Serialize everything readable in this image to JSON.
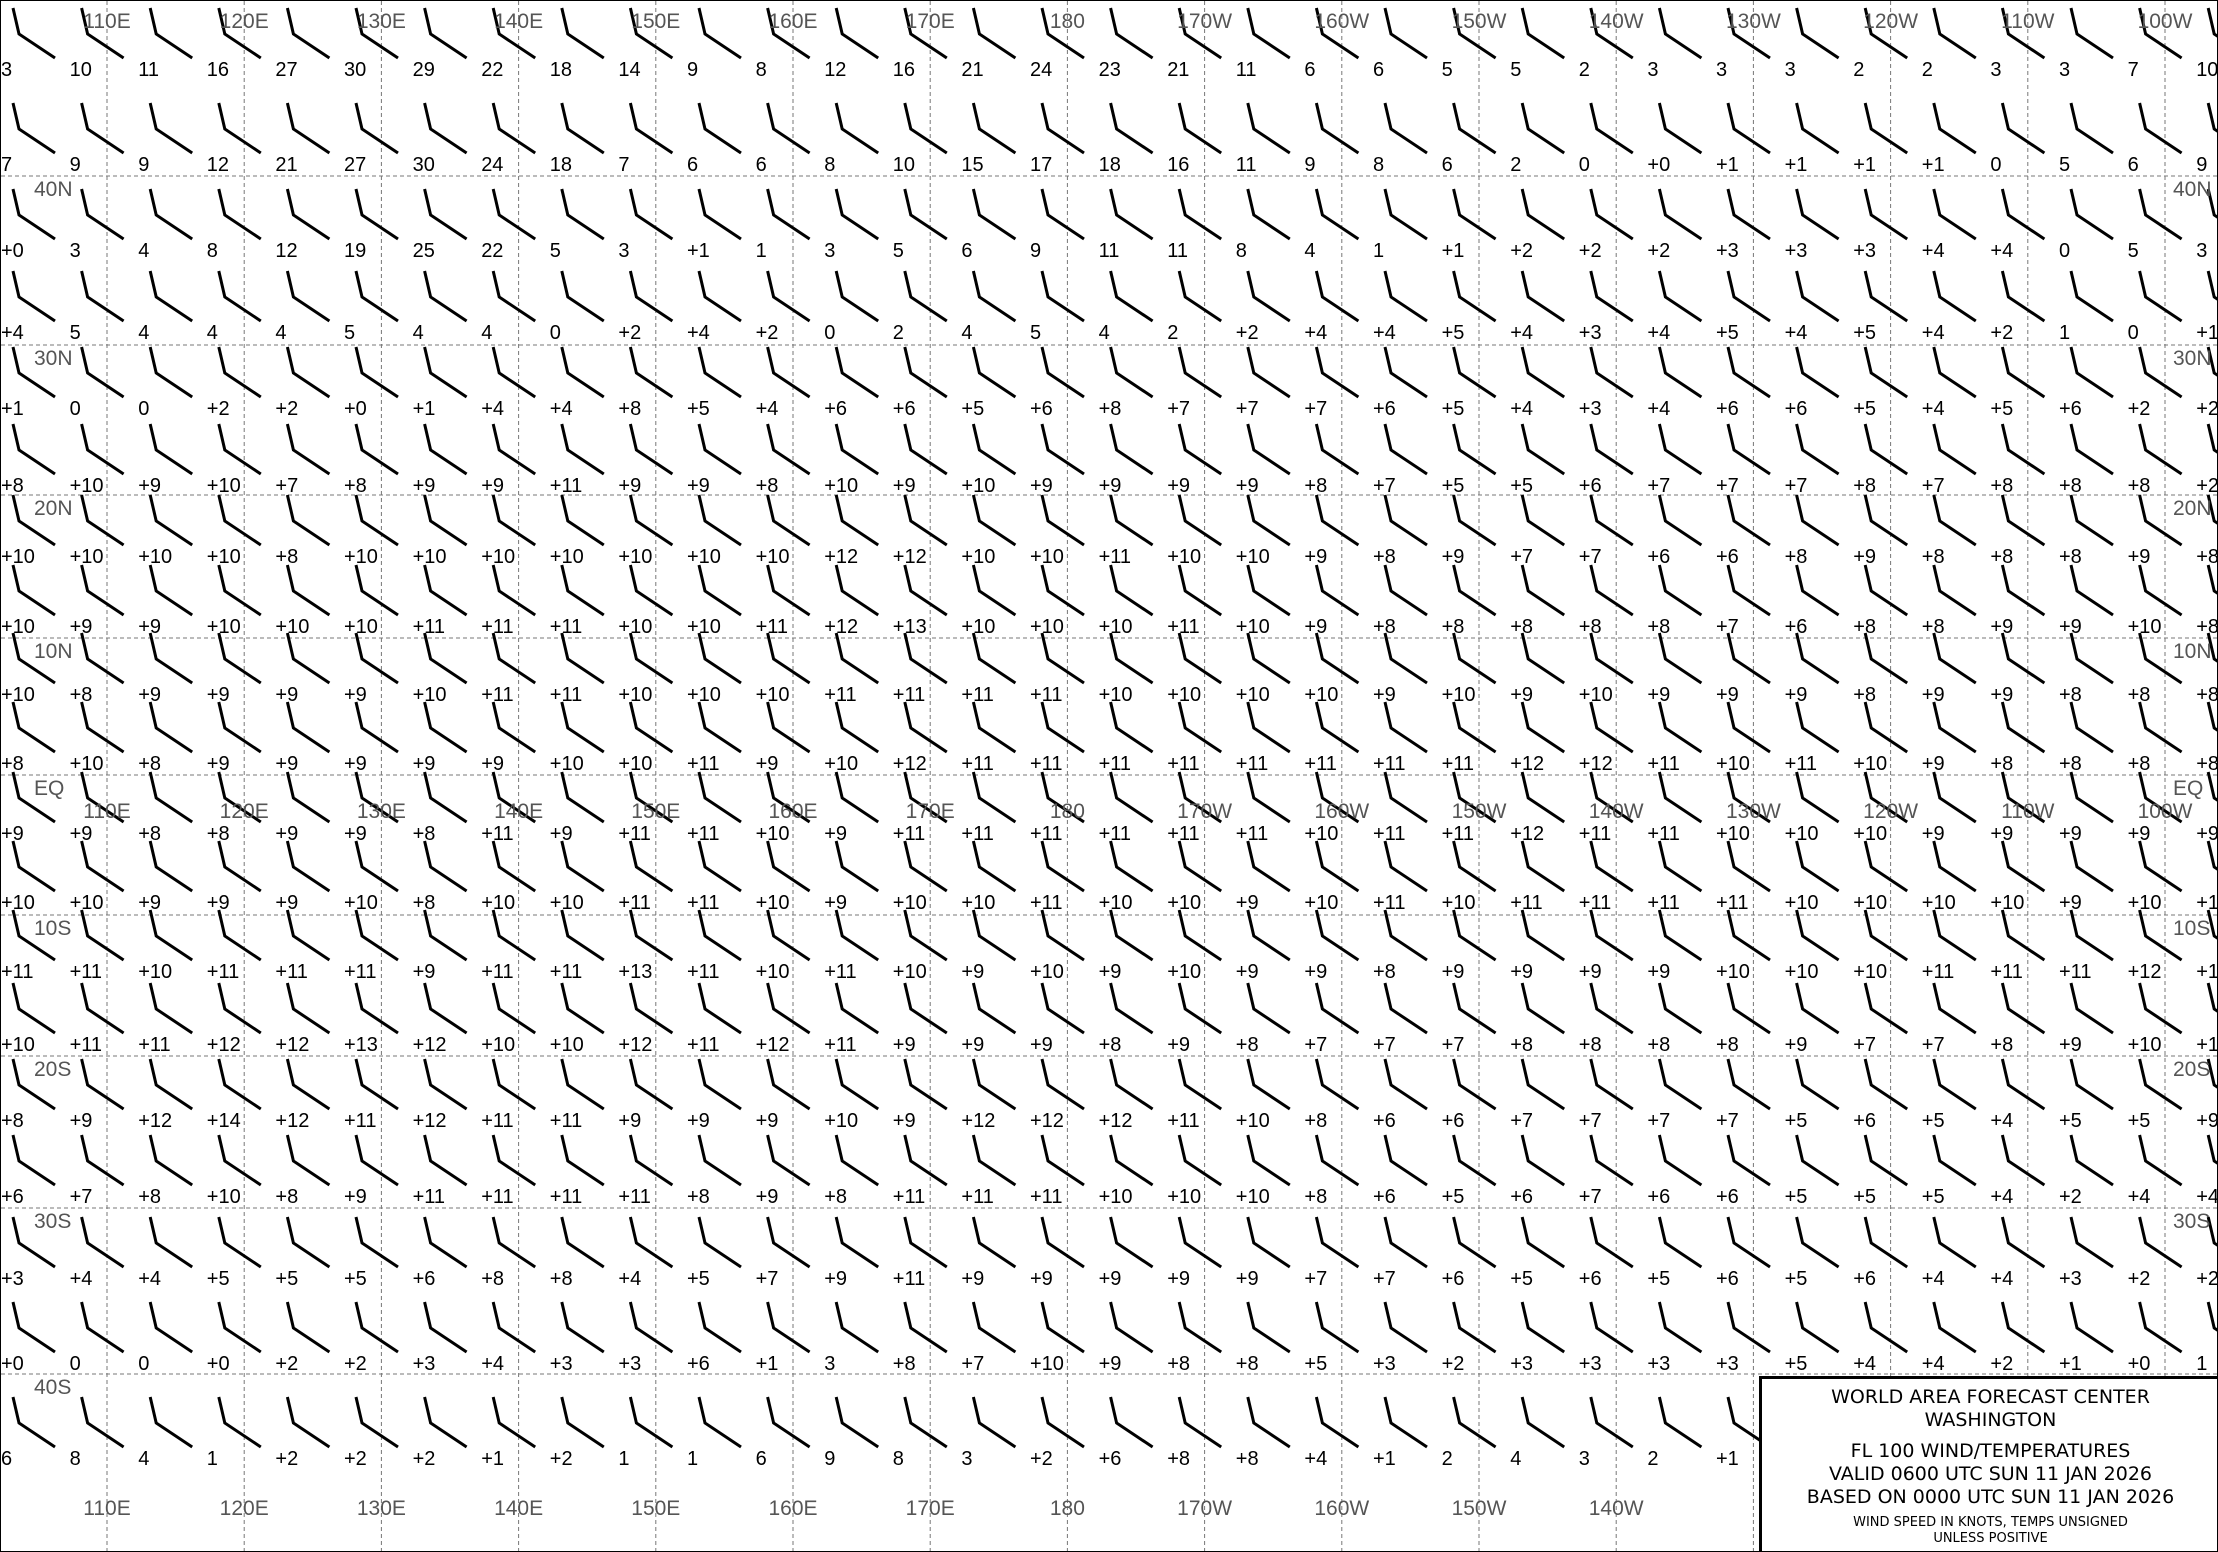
{
  "map": {
    "longitudes": [
      "110E",
      "120E",
      "130E",
      "140E",
      "150E",
      "160E",
      "170E",
      "180",
      "170W",
      "160W",
      "150W",
      "140W",
      "130W",
      "120W",
      "110W",
      "100W"
    ],
    "latitudes": [
      "40N",
      "30N",
      "20N",
      "10N",
      "EQ",
      "10S",
      "20S",
      "30S",
      "40S"
    ],
    "temperatures": [
      [
        "3",
        "10",
        "11",
        "16",
        "27",
        "30",
        "29",
        "22",
        "18",
        "14",
        "9",
        "8",
        "12",
        "16",
        "21",
        "24",
        "23",
        "21",
        "11",
        "6",
        "6",
        "5",
        "5",
        "2",
        "3",
        "3",
        "3",
        "2",
        "2",
        "3",
        "3",
        "7",
        "10"
      ],
      [
        "7",
        "9",
        "9",
        "12",
        "21",
        "27",
        "30",
        "24",
        "18",
        "7",
        "6",
        "6",
        "8",
        "10",
        "15",
        "17",
        "18",
        "16",
        "11",
        "9",
        "8",
        "6",
        "2",
        "0",
        "+0",
        "+1",
        "+1",
        "+1",
        "+1",
        "0",
        "5",
        "6",
        "9"
      ],
      [
        "+0",
        "3",
        "4",
        "8",
        "12",
        "19",
        "25",
        "22",
        "5",
        "3",
        "+1",
        "1",
        "3",
        "5",
        "6",
        "9",
        "11",
        "11",
        "8",
        "4",
        "1",
        "+1",
        "+2",
        "+2",
        "+2",
        "+3",
        "+3",
        "+3",
        "+4",
        "+4",
        "0",
        "5",
        "3"
      ],
      [
        "+4",
        "5",
        "4",
        "4",
        "4",
        "5",
        "4",
        "4",
        "0",
        "+2",
        "+4",
        "+2",
        "0",
        "2",
        "4",
        "5",
        "4",
        "2",
        "+2",
        "+4",
        "+4",
        "+5",
        "+4",
        "+3",
        "+4",
        "+5",
        "+4",
        "+5",
        "+4",
        "+2",
        "1",
        "0",
        "+1"
      ],
      [
        "+1",
        "0",
        "0",
        "+2",
        "+2",
        "+0",
        "+1",
        "+4",
        "+4",
        "+8",
        "+5",
        "+4",
        "+6",
        "+6",
        "+5",
        "+6",
        "+8",
        "+7",
        "+7",
        "+7",
        "+6",
        "+5",
        "+4",
        "+3",
        "+4",
        "+6",
        "+6",
        "+5",
        "+4",
        "+5",
        "+6",
        "+2",
        "+2"
      ],
      [
        "+8",
        "+10",
        "+9",
        "+10",
        "+7",
        "+8",
        "+9",
        "+9",
        "+11",
        "+9",
        "+9",
        "+8",
        "+10",
        "+9",
        "+10",
        "+9",
        "+9",
        "+9",
        "+9",
        "+8",
        "+7",
        "+5",
        "+5",
        "+6",
        "+7",
        "+7",
        "+7",
        "+8",
        "+7",
        "+8",
        "+8",
        "+8",
        "+2"
      ],
      [
        "+10",
        "+10",
        "+10",
        "+10",
        "+8",
        "+10",
        "+10",
        "+10",
        "+10",
        "+10",
        "+10",
        "+10",
        "+12",
        "+12",
        "+10",
        "+10",
        "+11",
        "+10",
        "+10",
        "+9",
        "+8",
        "+9",
        "+7",
        "+7",
        "+6",
        "+6",
        "+8",
        "+9",
        "+8",
        "+8",
        "+8",
        "+9",
        "+8"
      ],
      [
        "+10",
        "+9",
        "+9",
        "+10",
        "+10",
        "+10",
        "+11",
        "+11",
        "+11",
        "+10",
        "+10",
        "+11",
        "+12",
        "+13",
        "+10",
        "+10",
        "+10",
        "+11",
        "+10",
        "+9",
        "+8",
        "+8",
        "+8",
        "+8",
        "+8",
        "+7",
        "+6",
        "+8",
        "+8",
        "+9",
        "+9",
        "+10",
        "+8"
      ],
      [
        "+10",
        "+8",
        "+9",
        "+9",
        "+9",
        "+9",
        "+10",
        "+11",
        "+11",
        "+10",
        "+10",
        "+10",
        "+11",
        "+11",
        "+11",
        "+11",
        "+10",
        "+10",
        "+10",
        "+10",
        "+9",
        "+10",
        "+9",
        "+10",
        "+9",
        "+9",
        "+9",
        "+8",
        "+9",
        "+9",
        "+8",
        "+8",
        "+8"
      ],
      [
        "+8",
        "+10",
        "+8",
        "+9",
        "+9",
        "+9",
        "+9",
        "+9",
        "+10",
        "+10",
        "+11",
        "+9",
        "+10",
        "+12",
        "+11",
        "+11",
        "+11",
        "+11",
        "+11",
        "+11",
        "+11",
        "+11",
        "+12",
        "+12",
        "+11",
        "+10",
        "+11",
        "+10",
        "+9",
        "+8",
        "+8",
        "+8",
        "+8"
      ],
      [
        "+9",
        "+9",
        "+8",
        "+8",
        "+9",
        "+9",
        "+8",
        "+11",
        "+9",
        "+11",
        "+11",
        "+10",
        "+9",
        "+11",
        "+11",
        "+11",
        "+11",
        "+11",
        "+11",
        "+10",
        "+11",
        "+11",
        "+12",
        "+11",
        "+11",
        "+10",
        "+10",
        "+10",
        "+9",
        "+9",
        "+9",
        "+9",
        "+9"
      ],
      [
        "+10",
        "+10",
        "+9",
        "+9",
        "+9",
        "+10",
        "+8",
        "+10",
        "+10",
        "+11",
        "+11",
        "+10",
        "+9",
        "+10",
        "+10",
        "+11",
        "+10",
        "+10",
        "+9",
        "+10",
        "+11",
        "+10",
        "+11",
        "+11",
        "+11",
        "+11",
        "+10",
        "+10",
        "+10",
        "+10",
        "+9",
        "+10",
        "+1"
      ],
      [
        "+11",
        "+11",
        "+10",
        "+11",
        "+11",
        "+11",
        "+9",
        "+11",
        "+11",
        "+13",
        "+11",
        "+10",
        "+11",
        "+10",
        "+9",
        "+10",
        "+9",
        "+10",
        "+9",
        "+9",
        "+8",
        "+9",
        "+9",
        "+9",
        "+9",
        "+10",
        "+10",
        "+10",
        "+11",
        "+11",
        "+11",
        "+12",
        "+11"
      ],
      [
        "+10",
        "+11",
        "+11",
        "+12",
        "+12",
        "+13",
        "+12",
        "+10",
        "+10",
        "+12",
        "+11",
        "+12",
        "+11",
        "+9",
        "+9",
        "+9",
        "+8",
        "+9",
        "+8",
        "+7",
        "+7",
        "+7",
        "+8",
        "+8",
        "+8",
        "+8",
        "+9",
        "+7",
        "+7",
        "+8",
        "+9",
        "+10",
        "+1"
      ],
      [
        "+8",
        "+9",
        "+12",
        "+14",
        "+12",
        "+11",
        "+12",
        "+11",
        "+11",
        "+9",
        "+9",
        "+9",
        "+10",
        "+9",
        "+12",
        "+12",
        "+12",
        "+11",
        "+10",
        "+8",
        "+6",
        "+6",
        "+7",
        "+7",
        "+7",
        "+7",
        "+5",
        "+6",
        "+5",
        "+4",
        "+5",
        "+5",
        "+9"
      ],
      [
        "+6",
        "+7",
        "+8",
        "+10",
        "+8",
        "+9",
        "+11",
        "+11",
        "+11",
        "+11",
        "+8",
        "+9",
        "+8",
        "+11",
        "+11",
        "+11",
        "+10",
        "+10",
        "+10",
        "+8",
        "+6",
        "+5",
        "+6",
        "+7",
        "+6",
        "+6",
        "+5",
        "+5",
        "+5",
        "+4",
        "+2",
        "+4",
        "+4"
      ],
      [
        "+3",
        "+4",
        "+4",
        "+5",
        "+5",
        "+5",
        "+6",
        "+8",
        "+8",
        "+4",
        "+5",
        "+7",
        "+9",
        "+11",
        "+9",
        "+9",
        "+9",
        "+9",
        "+9",
        "+7",
        "+7",
        "+6",
        "+5",
        "+6",
        "+5",
        "+6",
        "+5",
        "+6",
        "+4",
        "+4",
        "+3",
        "+2",
        "+2"
      ],
      [
        "+0",
        "0",
        "0",
        "+0",
        "+2",
        "+2",
        "+3",
        "+4",
        "+3",
        "+3",
        "+6",
        "+1",
        "3",
        "+8",
        "+7",
        "+10",
        "+9",
        "+8",
        "+8",
        "+5",
        "+3",
        "+2",
        "+3",
        "+3",
        "+3",
        "+3",
        "+5",
        "+4",
        "+4",
        "+2",
        "+1",
        "+0",
        "1"
      ],
      [
        "6",
        "8",
        "4",
        "1",
        "+2",
        "+2",
        "+2",
        "+1",
        "+2",
        "1",
        "1",
        "6",
        "9",
        "8",
        "3",
        "+2",
        "+6",
        "+8",
        "+8",
        "+4",
        "+1",
        "2",
        "4",
        "3",
        "2",
        "+1"
      ]
    ],
    "barb_color": "#000000",
    "grid_color": "#777777",
    "coastline_color": "#888888"
  },
  "titlebox": {
    "line1": "WORLD AREA FORECAST CENTER",
    "line2": "WASHINGTON",
    "line3": "FL 100  WIND/TEMPERATURES",
    "line4": "VALID 0600 UTC SUN 11 JAN 2026",
    "line5": "BASED ON 0000 UTC SUN 11 JAN 2026",
    "line6": "WIND SPEED IN KNOTS, TEMPS UNSIGNED",
    "line7": "UNLESS POSITIVE"
  }
}
